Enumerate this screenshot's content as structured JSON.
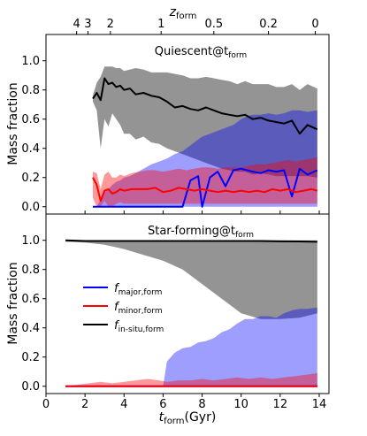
{
  "chart_data": {
    "type": "line",
    "top_axis": {
      "label": "z",
      "label_sub": "form",
      "ticks": [
        {
          "label": "4",
          "z": 4
        },
        {
          "label": "3",
          "z": 3
        },
        {
          "label": "2",
          "z": 2
        },
        {
          "label": "1",
          "z": 1
        },
        {
          "label": "0.5",
          "z": 0.5
        },
        {
          "label": "0.2",
          "z": 0.2
        },
        {
          "label": "0",
          "z": 0
        }
      ],
      "t_positions": [
        1.57,
        2.15,
        3.3,
        5.9,
        8.6,
        11.4,
        13.8
      ]
    },
    "xlabel": "t",
    "xlabel_sub": "form",
    "xlabel_suffix": "(Gyr)",
    "xlim": [
      0,
      14.5
    ],
    "xticks": [
      0,
      2,
      4,
      6,
      8,
      10,
      12,
      14
    ],
    "ylabel": "Mass fraction",
    "ylim": [
      -0.05,
      1.18
    ],
    "yticks": [
      0.0,
      0.2,
      0.4,
      0.6,
      0.8,
      1.0
    ],
    "legend": {
      "placement": "center-left (bottom panel)",
      "entries": [
        {
          "name": "f",
          "sub": "major,form",
          "color": "#0000ff"
        },
        {
          "name": "f",
          "sub": "minor,form",
          "color": "#ff0000"
        },
        {
          "name": "f",
          "sub": "in-situ,form",
          "color": "#000000"
        }
      ]
    },
    "panels": [
      {
        "title": "Quiescent@t",
        "title_sub": "form",
        "insitu": {
          "color": "#000000",
          "x": [
            2.4,
            2.6,
            2.8,
            3.0,
            3.2,
            3.4,
            3.6,
            3.8,
            4.0,
            4.3,
            4.6,
            5.0,
            5.4,
            5.8,
            6.2,
            6.6,
            7.0,
            7.4,
            7.8,
            8.2,
            8.6,
            9.0,
            9.4,
            9.8,
            10.2,
            10.6,
            11.0,
            11.4,
            11.8,
            12.2,
            12.6,
            13.0,
            13.4,
            13.9
          ],
          "y": [
            0.74,
            0.78,
            0.73,
            0.88,
            0.84,
            0.85,
            0.82,
            0.83,
            0.8,
            0.81,
            0.77,
            0.78,
            0.76,
            0.75,
            0.72,
            0.68,
            0.69,
            0.67,
            0.66,
            0.68,
            0.66,
            0.64,
            0.63,
            0.62,
            0.63,
            0.6,
            0.61,
            0.59,
            0.58,
            0.57,
            0.59,
            0.5,
            0.56,
            0.53
          ],
          "band_upper": [
            0.76,
            0.85,
            0.89,
            0.96,
            0.96,
            0.96,
            0.95,
            0.95,
            0.93,
            0.94,
            0.95,
            0.94,
            0.92,
            0.92,
            0.92,
            0.91,
            0.9,
            0.88,
            0.88,
            0.89,
            0.88,
            0.87,
            0.86,
            0.84,
            0.86,
            0.84,
            0.84,
            0.84,
            0.82,
            0.82,
            0.84,
            0.8,
            0.84,
            0.81
          ],
          "band_lower": [
            0.72,
            0.66,
            0.4,
            0.6,
            0.55,
            0.64,
            0.6,
            0.56,
            0.5,
            0.5,
            0.46,
            0.48,
            0.44,
            0.43,
            0.4,
            0.38,
            0.36,
            0.34,
            0.32,
            0.3,
            0.28,
            0.26,
            0.25,
            0.24,
            0.24,
            0.22,
            0.23,
            0.22,
            0.21,
            0.21,
            0.21,
            0.21,
            0.21,
            0.2
          ]
        },
        "major": {
          "color": "#0000ff",
          "x": [
            2.4,
            2.6,
            2.8,
            3.0,
            3.2,
            3.4,
            3.6,
            3.8,
            4.0,
            4.3,
            4.6,
            5.0,
            5.4,
            5.8,
            6.2,
            6.6,
            7.0,
            7.4,
            7.8,
            8.0,
            8.4,
            8.8,
            9.2,
            9.6,
            10.0,
            10.3,
            10.6,
            11.0,
            11.4,
            11.8,
            12.2,
            12.6,
            13.0,
            13.4,
            13.9
          ],
          "y": [
            0.0,
            0.0,
            0.0,
            0.0,
            0.0,
            0.0,
            0.0,
            0.0,
            0.0,
            0.0,
            0.0,
            0.0,
            0.0,
            0.0,
            0.0,
            0.0,
            0.0,
            0.18,
            0.21,
            0.0,
            0.2,
            0.24,
            0.14,
            0.25,
            0.26,
            0.25,
            0.24,
            0.23,
            0.25,
            0.24,
            0.25,
            0.07,
            0.26,
            0.22,
            0.25
          ],
          "band_upper": [
            0.0,
            0.0,
            0.05,
            0.1,
            0.12,
            0.15,
            0.17,
            0.18,
            0.2,
            0.21,
            0.23,
            0.26,
            0.29,
            0.31,
            0.33,
            0.36,
            0.38,
            0.42,
            0.46,
            0.48,
            0.5,
            0.52,
            0.54,
            0.56,
            0.6,
            0.62,
            0.63,
            0.63,
            0.64,
            0.63,
            0.64,
            0.66,
            0.66,
            0.65,
            0.66
          ],
          "band_lower": [
            0.0,
            0.0,
            0.0,
            0.0,
            0.0,
            0.0,
            0.0,
            0.0,
            0.0,
            0.0,
            0.0,
            0.0,
            0.0,
            0.0,
            0.0,
            0.0,
            0.0,
            0.0,
            0.0,
            0.0,
            0.0,
            0.0,
            0.0,
            0.0,
            0.0,
            0.0,
            0.0,
            0.0,
            0.0,
            0.0,
            0.0,
            0.0,
            0.0,
            0.0,
            0.0
          ]
        },
        "minor": {
          "color": "#ff0000",
          "x": [
            2.4,
            2.6,
            2.8,
            3.0,
            3.2,
            3.4,
            3.6,
            3.8,
            4.0,
            4.4,
            4.8,
            5.2,
            5.6,
            6.0,
            6.4,
            6.8,
            7.2,
            7.6,
            8.0,
            8.4,
            8.8,
            9.2,
            9.6,
            10.0,
            10.4,
            10.8,
            11.2,
            11.6,
            12.0,
            12.4,
            12.8,
            13.2,
            13.6,
            13.9
          ],
          "y": [
            0.2,
            0.15,
            0.04,
            0.11,
            0.12,
            0.09,
            0.1,
            0.12,
            0.11,
            0.12,
            0.12,
            0.12,
            0.13,
            0.1,
            0.11,
            0.13,
            0.12,
            0.11,
            0.12,
            0.11,
            0.1,
            0.11,
            0.1,
            0.11,
            0.1,
            0.11,
            0.1,
            0.12,
            0.11,
            0.12,
            0.1,
            0.11,
            0.12,
            0.11
          ],
          "band_upper": [
            0.24,
            0.23,
            0.12,
            0.22,
            0.24,
            0.2,
            0.2,
            0.22,
            0.21,
            0.23,
            0.24,
            0.25,
            0.25,
            0.24,
            0.25,
            0.26,
            0.25,
            0.26,
            0.27,
            0.27,
            0.26,
            0.27,
            0.27,
            0.27,
            0.28,
            0.29,
            0.29,
            0.3,
            0.31,
            0.32,
            0.31,
            0.32,
            0.33,
            0.34
          ],
          "band_lower": [
            0.06,
            0.0,
            0.0,
            0.04,
            0.0,
            0.0,
            0.02,
            0.03,
            0.02,
            0.02,
            0.02,
            0.02,
            0.02,
            0.02,
            0.02,
            0.02,
            0.02,
            0.02,
            0.02,
            0.02,
            0.02,
            0.02,
            0.02,
            0.02,
            0.02,
            0.02,
            0.02,
            0.02,
            0.02,
            0.02,
            0.02,
            0.02,
            0.02,
            0.02
          ]
        }
      },
      {
        "title": "Star-forming@t",
        "title_sub": "form",
        "insitu": {
          "color": "#000000",
          "x": [
            1.0,
            2.0,
            3.0,
            4.0,
            5.0,
            6.0,
            7.0,
            8.0,
            9.0,
            10.0,
            11.0,
            12.0,
            13.0,
            13.9
          ],
          "y": [
            1.0,
            0.995,
            0.995,
            0.995,
            0.995,
            0.995,
            0.995,
            0.995,
            0.995,
            0.995,
            0.995,
            0.993,
            0.992,
            0.99
          ],
          "band_upper": [
            1.0,
            1.0,
            1.0,
            1.0,
            1.0,
            1.0,
            1.0,
            1.0,
            1.0,
            1.0,
            1.0,
            1.0,
            1.0,
            1.0
          ],
          "band_lower": [
            0.99,
            0.985,
            0.97,
            0.94,
            0.9,
            0.86,
            0.8,
            0.7,
            0.6,
            0.5,
            0.46,
            0.46,
            0.47,
            0.5
          ]
        },
        "major": {
          "color": "#0000ff",
          "x": [
            1.0,
            2.0,
            3.0,
            4.0,
            5.0,
            6.0,
            13.9
          ],
          "y": [
            0.0,
            0.0,
            0.0,
            0.0,
            0.0,
            0.0,
            0.0
          ],
          "band_upper_x": [
            1.0,
            6.0,
            6.2,
            6.6,
            7.0,
            7.4,
            7.8,
            8.2,
            8.6,
            9.0,
            9.4,
            9.8,
            10.2,
            10.6,
            11.0,
            11.4,
            11.8,
            12.2,
            12.6,
            13.0,
            13.4,
            13.9
          ],
          "band_upper": [
            0.0,
            0.0,
            0.17,
            0.23,
            0.26,
            0.27,
            0.3,
            0.31,
            0.33,
            0.37,
            0.39,
            0.43,
            0.46,
            0.46,
            0.48,
            0.48,
            0.47,
            0.5,
            0.52,
            0.53,
            0.53,
            0.54
          ],
          "band_lower": 0.0
        },
        "minor": {
          "color": "#ff0000",
          "x": [
            1.0,
            13.9
          ],
          "y": [
            0.0,
            0.0
          ],
          "band_upper_x": [
            1.0,
            1.6,
            2.2,
            2.8,
            3.4,
            4.0,
            4.6,
            5.2,
            5.8,
            6.2,
            6.8,
            7.4,
            8.0,
            8.6,
            9.2,
            9.8,
            10.4,
            11.0,
            11.6,
            12.2,
            12.8,
            13.4,
            13.9
          ],
          "band_upper": [
            0.0,
            0.01,
            0.02,
            0.03,
            0.02,
            0.03,
            0.04,
            0.05,
            0.04,
            0.03,
            0.04,
            0.04,
            0.05,
            0.04,
            0.05,
            0.06,
            0.05,
            0.06,
            0.05,
            0.06,
            0.07,
            0.08,
            0.09
          ],
          "band_lower": 0.0
        }
      }
    ]
  }
}
